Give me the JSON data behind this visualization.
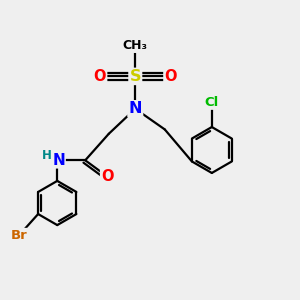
{
  "bg_color": "#efefef",
  "atom_colors": {
    "C": "#000000",
    "N": "#0000ff",
    "O": "#ff0000",
    "S": "#cccc00",
    "Cl": "#00bb00",
    "Br": "#cc6600",
    "H": "#008888"
  },
  "bond_color": "#000000",
  "bond_width": 1.6,
  "font_size": 9.5
}
